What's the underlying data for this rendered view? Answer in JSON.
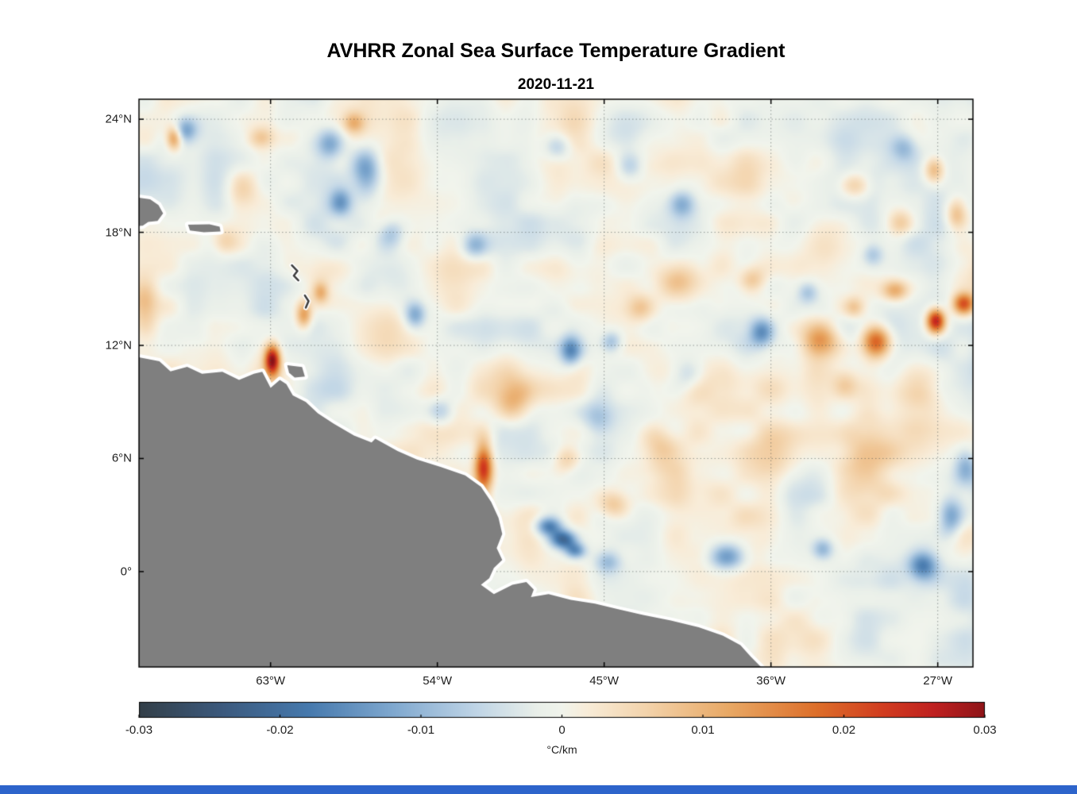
{
  "ui": {
    "background": "#ffffff",
    "bottom_strip_color": "#2d64cb"
  },
  "chart_data": {
    "type": "heatmap",
    "title": "AVHRR Zonal Sea Surface Temperature Gradient",
    "subtitle": "2020-11-21",
    "projection": "lon-lat",
    "xlim": [
      -70.1,
      -25.1
    ],
    "ylim": [
      -5.06,
      25.06
    ],
    "grid": "dotted",
    "land_color": "#7f7f7f",
    "coast_mask_color": "#ffffff",
    "xticks": [
      {
        "lon": -63,
        "label": "63°W"
      },
      {
        "lon": -54,
        "label": "54°W"
      },
      {
        "lon": -45,
        "label": "45°W"
      },
      {
        "lon": -36,
        "label": "36°W"
      },
      {
        "lon": -27,
        "label": "27°W"
      }
    ],
    "yticks": [
      {
        "lat": 24,
        "label": "24°N"
      },
      {
        "lat": 18,
        "label": "18°N"
      },
      {
        "lat": 12,
        "label": "12°N"
      },
      {
        "lat": 6,
        "label": "6°N"
      },
      {
        "lat": 0,
        "label": "0°"
      }
    ],
    "colorbar": {
      "orientation": "horizontal",
      "min": -0.03,
      "max": 0.03,
      "ticks": [
        -0.03,
        -0.02,
        -0.01,
        0,
        0.01,
        0.02,
        0.03
      ],
      "tick_labels": [
        "-0.03",
        "-0.02",
        "-0.01",
        "0",
        "0.01",
        "0.02",
        "0.03"
      ],
      "unit": "°C/km",
      "stops": [
        [
          0.0,
          "#333f48"
        ],
        [
          0.1,
          "#3c5a7e"
        ],
        [
          0.2,
          "#4679ad"
        ],
        [
          0.3,
          "#7fa8cf"
        ],
        [
          0.4,
          "#c0d5e6"
        ],
        [
          0.47,
          "#e9efe9"
        ],
        [
          0.5,
          "#f1f4ec"
        ],
        [
          0.53,
          "#f8ecd8"
        ],
        [
          0.6,
          "#f3d3ab"
        ],
        [
          0.7,
          "#e8a763"
        ],
        [
          0.8,
          "#dd6f2a"
        ],
        [
          0.88,
          "#d13c1f"
        ],
        [
          0.94,
          "#bf2020"
        ],
        [
          1.0,
          "#8e1418"
        ]
      ]
    },
    "field": {
      "units": "degC_per_km",
      "noise": {
        "seed": 7,
        "octaves": [
          {
            "scale_deg": 3.2,
            "amp": 0.0042
          },
          {
            "scale_deg": 1.3,
            "amp": 0.0022
          }
        ]
      },
      "feature_fields": [
        "lon",
        "lat",
        "sigma_lon",
        "sigma_lat",
        "amp"
      ],
      "features": [
        [
          -62.9,
          11.2,
          0.28,
          0.55,
          0.03
        ],
        [
          -51.5,
          5.5,
          0.35,
          0.95,
          0.026
        ],
        [
          -48.0,
          2.4,
          0.5,
          0.35,
          -0.017
        ],
        [
          -47.2,
          1.7,
          0.5,
          0.35,
          -0.021
        ],
        [
          -46.55,
          1.1,
          0.4,
          0.3,
          -0.015
        ],
        [
          -30.3,
          12.2,
          0.55,
          0.6,
          0.022
        ],
        [
          -27.1,
          13.3,
          0.35,
          0.45,
          0.028
        ],
        [
          -25.6,
          14.2,
          0.4,
          0.4,
          0.02
        ],
        [
          -29.3,
          14.9,
          0.5,
          0.4,
          0.012
        ],
        [
          -33.3,
          12.3,
          0.7,
          0.6,
          0.012
        ],
        [
          -57.8,
          21.2,
          0.55,
          0.9,
          -0.014
        ],
        [
          -59.8,
          22.7,
          0.5,
          0.6,
          -0.011
        ],
        [
          -59.2,
          19.6,
          0.4,
          0.5,
          -0.01
        ],
        [
          -55.2,
          13.6,
          0.4,
          0.5,
          -0.012
        ],
        [
          -46.8,
          11.7,
          0.4,
          0.55,
          -0.014
        ],
        [
          -44.6,
          12.2,
          0.4,
          0.4,
          -0.009
        ],
        [
          -36.5,
          12.7,
          0.45,
          0.5,
          -0.013
        ],
        [
          -38.3,
          0.8,
          0.7,
          0.5,
          -0.014
        ],
        [
          -33.2,
          1.2,
          0.4,
          0.4,
          -0.01
        ],
        [
          -27.8,
          0.3,
          0.55,
          0.55,
          -0.016
        ],
        [
          -26.3,
          2.9,
          0.45,
          0.7,
          -0.012
        ],
        [
          -67.6,
          23.4,
          0.45,
          0.45,
          -0.012
        ],
        [
          -52.0,
          17.3,
          0.5,
          0.5,
          -0.009
        ],
        [
          -40.8,
          19.5,
          0.5,
          0.5,
          -0.01
        ],
        [
          -43.6,
          21.5,
          0.5,
          0.5,
          -0.008
        ],
        [
          -45.3,
          8.3,
          0.6,
          0.6,
          -0.008
        ],
        [
          -53.8,
          8.5,
          0.5,
          0.5,
          -0.007
        ],
        [
          -47.5,
          22.5,
          0.5,
          0.5,
          -0.008
        ],
        [
          -28.8,
          22.5,
          0.5,
          0.5,
          -0.008
        ],
        [
          -40.5,
          10.5,
          0.6,
          0.6,
          -0.007
        ],
        [
          -34.0,
          14.8,
          0.4,
          0.4,
          -0.008
        ],
        [
          -44.8,
          0.5,
          0.5,
          0.4,
          -0.008
        ],
        [
          -25.5,
          5.5,
          0.4,
          0.6,
          -0.008
        ],
        [
          -30.5,
          16.8,
          0.4,
          0.4,
          -0.007
        ],
        [
          -56.5,
          18.0,
          0.5,
          0.5,
          -0.008
        ],
        [
          -68.2,
          23.0,
          0.3,
          0.45,
          0.016
        ],
        [
          -61.2,
          13.6,
          0.3,
          0.5,
          0.014
        ],
        [
          -60.3,
          14.8,
          0.3,
          0.4,
          0.01
        ],
        [
          -69.8,
          14.3,
          0.5,
          0.9,
          0.009
        ],
        [
          -64.5,
          20.5,
          0.6,
          0.6,
          0.008
        ],
        [
          -49.9,
          9.0,
          0.7,
          0.8,
          0.009
        ],
        [
          -33.0,
          17.5,
          1.2,
          1.0,
          0.006
        ],
        [
          -35.8,
          6.3,
          1.3,
          1.0,
          0.007
        ],
        [
          -30.8,
          6.3,
          1.2,
          1.2,
          0.007
        ],
        [
          -28.0,
          9.5,
          1.0,
          1.0,
          0.006
        ],
        [
          -42.0,
          6.5,
          0.8,
          0.7,
          0.008
        ],
        [
          -31.5,
          20.5,
          0.6,
          0.5,
          0.01
        ],
        [
          -27.2,
          21.3,
          0.4,
          0.5,
          0.012
        ],
        [
          -41.0,
          15.5,
          0.8,
          0.7,
          0.006
        ],
        [
          -31.5,
          14.0,
          0.4,
          0.4,
          0.008
        ],
        [
          -32.0,
          9.8,
          0.5,
          0.5,
          0.008
        ],
        [
          -26.0,
          19.0,
          0.4,
          0.6,
          0.01
        ],
        [
          -29.0,
          18.5,
          0.5,
          0.5,
          0.009
        ],
        [
          -43.0,
          14.0,
          0.5,
          0.5,
          0.007
        ],
        [
          -37.0,
          15.5,
          0.5,
          0.5,
          0.008
        ],
        [
          -44.5,
          3.5,
          0.6,
          0.5,
          0.008
        ],
        [
          -47.0,
          6.0,
          0.5,
          0.5,
          0.007
        ],
        [
          -65.5,
          17.5,
          0.5,
          0.5,
          0.007
        ],
        [
          -63.5,
          23.0,
          0.5,
          0.4,
          0.008
        ],
        [
          -58.5,
          23.8,
          0.4,
          0.4,
          0.009
        ]
      ]
    },
    "land": {
      "mainland": [
        [
          -70.6,
          11.5
        ],
        [
          -70.1,
          11.37
        ],
        [
          -69.0,
          11.16
        ],
        [
          -68.4,
          10.62
        ],
        [
          -67.5,
          10.86
        ],
        [
          -66.7,
          10.5
        ],
        [
          -65.6,
          10.6
        ],
        [
          -64.7,
          10.17
        ],
        [
          -63.9,
          10.5
        ],
        [
          -63.45,
          10.6
        ],
        [
          -63.0,
          9.75
        ],
        [
          -62.5,
          10.17
        ],
        [
          -62.15,
          9.95
        ],
        [
          -61.8,
          9.35
        ],
        [
          -61.1,
          9.0
        ],
        [
          -60.45,
          8.4
        ],
        [
          -59.6,
          7.85
        ],
        [
          -58.5,
          7.22
        ],
        [
          -57.55,
          6.85
        ],
        [
          -57.35,
          7.05
        ],
        [
          -56.15,
          6.4
        ],
        [
          -55.1,
          5.95
        ],
        [
          -53.8,
          5.55
        ],
        [
          -52.5,
          5.1
        ],
        [
          -51.65,
          4.5
        ],
        [
          -51.1,
          3.7
        ],
        [
          -50.7,
          2.85
        ],
        [
          -50.5,
          2.0
        ],
        [
          -50.8,
          1.25
        ],
        [
          -50.5,
          0.62
        ],
        [
          -50.95,
          0.2
        ],
        [
          -51.2,
          -0.35
        ],
        [
          -51.65,
          -0.7
        ],
        [
          -50.95,
          -1.2
        ],
        [
          -49.95,
          -0.7
        ],
        [
          -49.2,
          -0.55
        ],
        [
          -48.8,
          -0.95
        ],
        [
          -48.95,
          -1.35
        ],
        [
          -48.0,
          -1.2
        ],
        [
          -46.8,
          -1.5
        ],
        [
          -45.5,
          -1.7
        ],
        [
          -44.25,
          -2.0
        ],
        [
          -42.9,
          -2.3
        ],
        [
          -41.4,
          -2.6
        ],
        [
          -39.9,
          -2.95
        ],
        [
          -38.6,
          -3.4
        ],
        [
          -37.65,
          -3.9
        ],
        [
          -37.1,
          -4.5
        ],
        [
          -36.5,
          -5.1
        ],
        [
          -36.2,
          -5.6
        ],
        [
          -70.6,
          -5.6
        ]
      ],
      "islands": [
        {
          "name": "hispaniola-east",
          "points": [
            [
              -70.6,
              19.9
            ],
            [
              -69.5,
              19.75
            ],
            [
              -69.05,
              19.45
            ],
            [
              -68.8,
              19.0
            ],
            [
              -69.1,
              18.6
            ],
            [
              -69.6,
              18.55
            ],
            [
              -69.9,
              18.35
            ],
            [
              -70.6,
              18.3
            ]
          ]
        },
        {
          "name": "puerto-rico",
          "points": [
            [
              -67.45,
              18.4
            ],
            [
              -66.3,
              18.42
            ],
            [
              -65.75,
              18.3
            ],
            [
              -65.7,
              18.05
            ],
            [
              -66.6,
              18.0
            ],
            [
              -67.35,
              18.1
            ]
          ]
        },
        {
          "name": "trinidad",
          "points": [
            [
              -62.1,
              10.95
            ],
            [
              -61.3,
              10.85
            ],
            [
              -61.15,
              10.35
            ],
            [
              -61.7,
              10.3
            ],
            [
              -62.0,
              10.55
            ]
          ]
        }
      ],
      "island_marks": [
        [
          [
            -61.85,
            16.25
          ],
          [
            -61.55,
            15.95
          ],
          [
            -61.75,
            15.7
          ],
          [
            -61.5,
            15.45
          ]
        ],
        [
          [
            -61.15,
            14.65
          ],
          [
            -60.95,
            14.35
          ],
          [
            -61.1,
            14.0
          ]
        ]
      ]
    }
  }
}
